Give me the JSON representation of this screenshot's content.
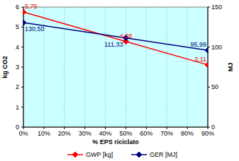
{
  "chart_data": {
    "type": "line",
    "x_label": "% EPS riciclato",
    "y_label": "kg CO2",
    "y2_label": "MJ",
    "x": [
      0,
      50,
      90
    ],
    "xlim": [
      0,
      90
    ],
    "xticks": [
      {
        "value": 0,
        "label": "0%"
      },
      {
        "value": 10,
        "label": "10%"
      },
      {
        "value": 20,
        "label": "20%"
      },
      {
        "value": 30,
        "label": "30%"
      },
      {
        "value": 40,
        "label": "40%"
      },
      {
        "value": 50,
        "label": "50%"
      },
      {
        "value": 60,
        "label": "60%"
      },
      {
        "value": 70,
        "label": "70%"
      },
      {
        "value": 80,
        "label": "80%"
      },
      {
        "value": 90,
        "label": "90%"
      }
    ],
    "ylim": [
      0,
      6
    ],
    "yticks": [
      0,
      1,
      2,
      3,
      4,
      5,
      6
    ],
    "y2lim": [
      0,
      150
    ],
    "y2ticks": [
      0,
      50,
      100,
      150
    ],
    "grid": true,
    "legend": "bottom",
    "data_labels": true,
    "series": [
      {
        "name": "GWP [kg]",
        "color": "#ff0000",
        "marker": "diamond",
        "values": [
          5.75,
          4.28,
          3.11
        ],
        "value_labels": [
          "5,75",
          "4,28",
          "3,11"
        ]
      },
      {
        "name": "GER [MJ]",
        "color": "#000080",
        "marker": "diamond",
        "axis": "y2",
        "values": [
          130.5,
          111.33,
          95.99
        ],
        "value_labels": [
          "130,50",
          "111,33",
          "95,99"
        ]
      }
    ]
  }
}
